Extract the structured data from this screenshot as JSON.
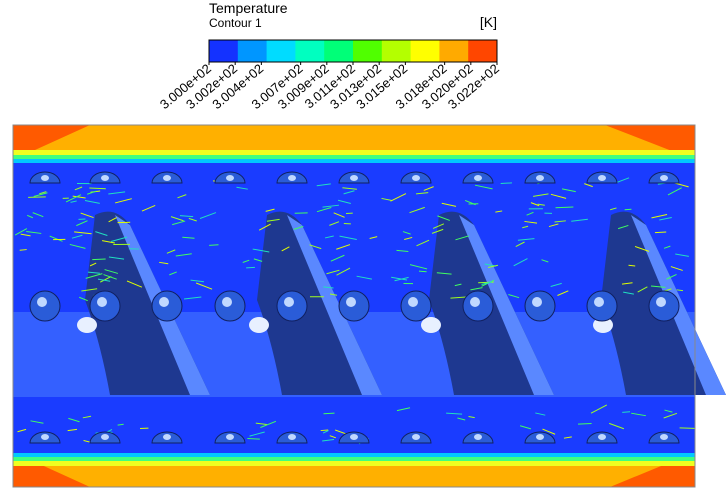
{
  "legend": {
    "title": "Temperature",
    "subtitle": "Contour 1",
    "unit": "[K]",
    "ticks": [
      {
        "value": 300.0,
        "label": "3.000e+02"
      },
      {
        "value": 300.2,
        "label": "3.002e+02"
      },
      {
        "value": 300.4,
        "label": "3.004e+02"
      },
      {
        "value": 300.7,
        "label": "3.007e+02"
      },
      {
        "value": 300.9,
        "label": "3.009e+02"
      },
      {
        "value": 301.1,
        "label": "3.011e+02"
      },
      {
        "value": 301.3,
        "label": "3.013e+02"
      },
      {
        "value": 301.5,
        "label": "3.015e+02"
      },
      {
        "value": 301.8,
        "label": "3.018e+02"
      },
      {
        "value": 302.0,
        "label": "3.020e+02"
      },
      {
        "value": 302.2,
        "label": "3.022e+02"
      }
    ],
    "colors": [
      "#1432ff",
      "#0096ff",
      "#00dcff",
      "#00ffc0",
      "#00ff78",
      "#50ff00",
      "#b4ff00",
      "#ffff00",
      "#ffaa00",
      "#ff4600"
    ]
  }
}
